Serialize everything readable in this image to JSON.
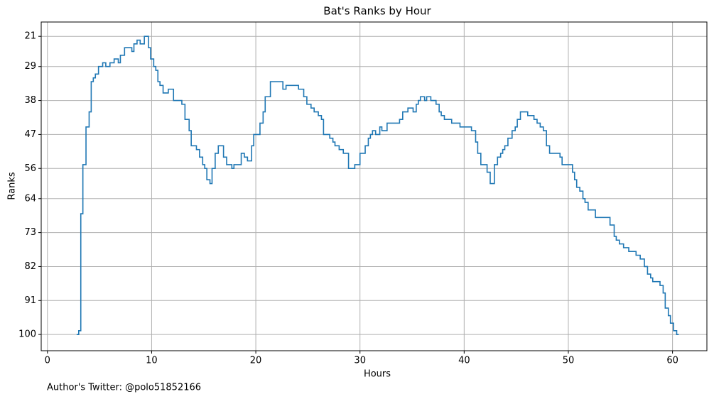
{
  "chart_data": {
    "type": "line",
    "drawstyle": "steps-post",
    "title": "Bat's Ranks by Hour",
    "xlabel": "Hours",
    "ylabel": "Ranks",
    "footnote": "Author's Twitter: @polo51852166",
    "x": [
      2.8,
      3.0,
      3.2,
      3.4,
      3.7,
      4.0,
      4.2,
      4.4,
      4.6,
      4.9,
      5.3,
      5.6,
      6.0,
      6.4,
      6.8,
      7.0,
      7.4,
      8.1,
      8.3,
      8.6,
      8.9,
      9.3,
      9.7,
      9.9,
      10.2,
      10.4,
      10.6,
      10.8,
      11.1,
      11.6,
      12.1,
      12.9,
      13.2,
      13.6,
      13.8,
      14.3,
      14.6,
      14.9,
      15.1,
      15.3,
      15.6,
      15.8,
      16.1,
      16.4,
      16.9,
      17.2,
      17.7,
      17.9,
      18.6,
      18.9,
      19.2,
      19.6,
      19.8,
      20.4,
      20.7,
      20.9,
      21.4,
      22.6,
      22.9,
      24.1,
      24.6,
      24.9,
      25.3,
      25.6,
      26.0,
      26.3,
      26.5,
      27.1,
      27.4,
      27.6,
      28.0,
      28.4,
      28.9,
      29.5,
      30.0,
      30.5,
      30.8,
      31.0,
      31.2,
      31.5,
      31.9,
      32.1,
      32.6,
      33.8,
      34.1,
      34.6,
      35.1,
      35.4,
      35.6,
      35.8,
      36.2,
      36.4,
      36.8,
      37.3,
      37.6,
      37.8,
      38.1,
      38.8,
      39.6,
      40.7,
      41.1,
      41.3,
      41.6,
      42.2,
      42.5,
      42.9,
      43.2,
      43.5,
      43.7,
      43.9,
      44.2,
      44.6,
      44.9,
      45.1,
      45.4,
      46.1,
      46.7,
      47.0,
      47.3,
      47.6,
      47.9,
      48.2,
      49.2,
      49.4,
      50.4,
      50.6,
      50.8,
      51.1,
      51.4,
      51.6,
      51.9,
      52.6,
      54.0,
      54.4,
      54.6,
      54.9,
      55.3,
      55.8,
      56.5,
      56.9,
      57.3,
      57.6,
      57.9,
      58.1,
      58.8,
      59.1,
      59.3,
      59.6,
      59.8,
      60.1,
      60.4,
      60.6
    ],
    "series": [
      {
        "name": "Bat",
        "color": "#1f77b4",
        "values": [
          100,
          99,
          68,
          55,
          45,
          41,
          33,
          32,
          31,
          29,
          28,
          29,
          28,
          27,
          28,
          26,
          24,
          25,
          23,
          22,
          23,
          21,
          24,
          27,
          29,
          30,
          33,
          34,
          36,
          35,
          38,
          39,
          43,
          46,
          50,
          51,
          53,
          55,
          56,
          59,
          60,
          56,
          52,
          50,
          53,
          55,
          56,
          55,
          52,
          53,
          54,
          50,
          47,
          44,
          41,
          37,
          33,
          35,
          34,
          35,
          37,
          39,
          40,
          41,
          42,
          43,
          47,
          48,
          49,
          50,
          51,
          52,
          56,
          55,
          52,
          50,
          48,
          47,
          46,
          47,
          45,
          46,
          44,
          43,
          41,
          40,
          41,
          39,
          38,
          37,
          38,
          37,
          38,
          39,
          41,
          42,
          43,
          44,
          45,
          46,
          49,
          52,
          55,
          57,
          60,
          55,
          53,
          52,
          51,
          50,
          48,
          46,
          45,
          43,
          41,
          42,
          43,
          44,
          45,
          46,
          50,
          52,
          53,
          55,
          57,
          59,
          61,
          62,
          64,
          65,
          67,
          69,
          71,
          74,
          75,
          76,
          77,
          78,
          79,
          80,
          82,
          84,
          85,
          86,
          87,
          89,
          93,
          95,
          97,
          99,
          100,
          100
        ]
      }
    ],
    "xlim": [
      -0.6,
      63.3
    ],
    "xticks": [
      0,
      10,
      20,
      30,
      40,
      50,
      60
    ],
    "ylim": [
      104.3,
      17.2
    ],
    "yticks": [
      21,
      29,
      38,
      47,
      56,
      64,
      73,
      82,
      91,
      100
    ],
    "grid": true
  }
}
